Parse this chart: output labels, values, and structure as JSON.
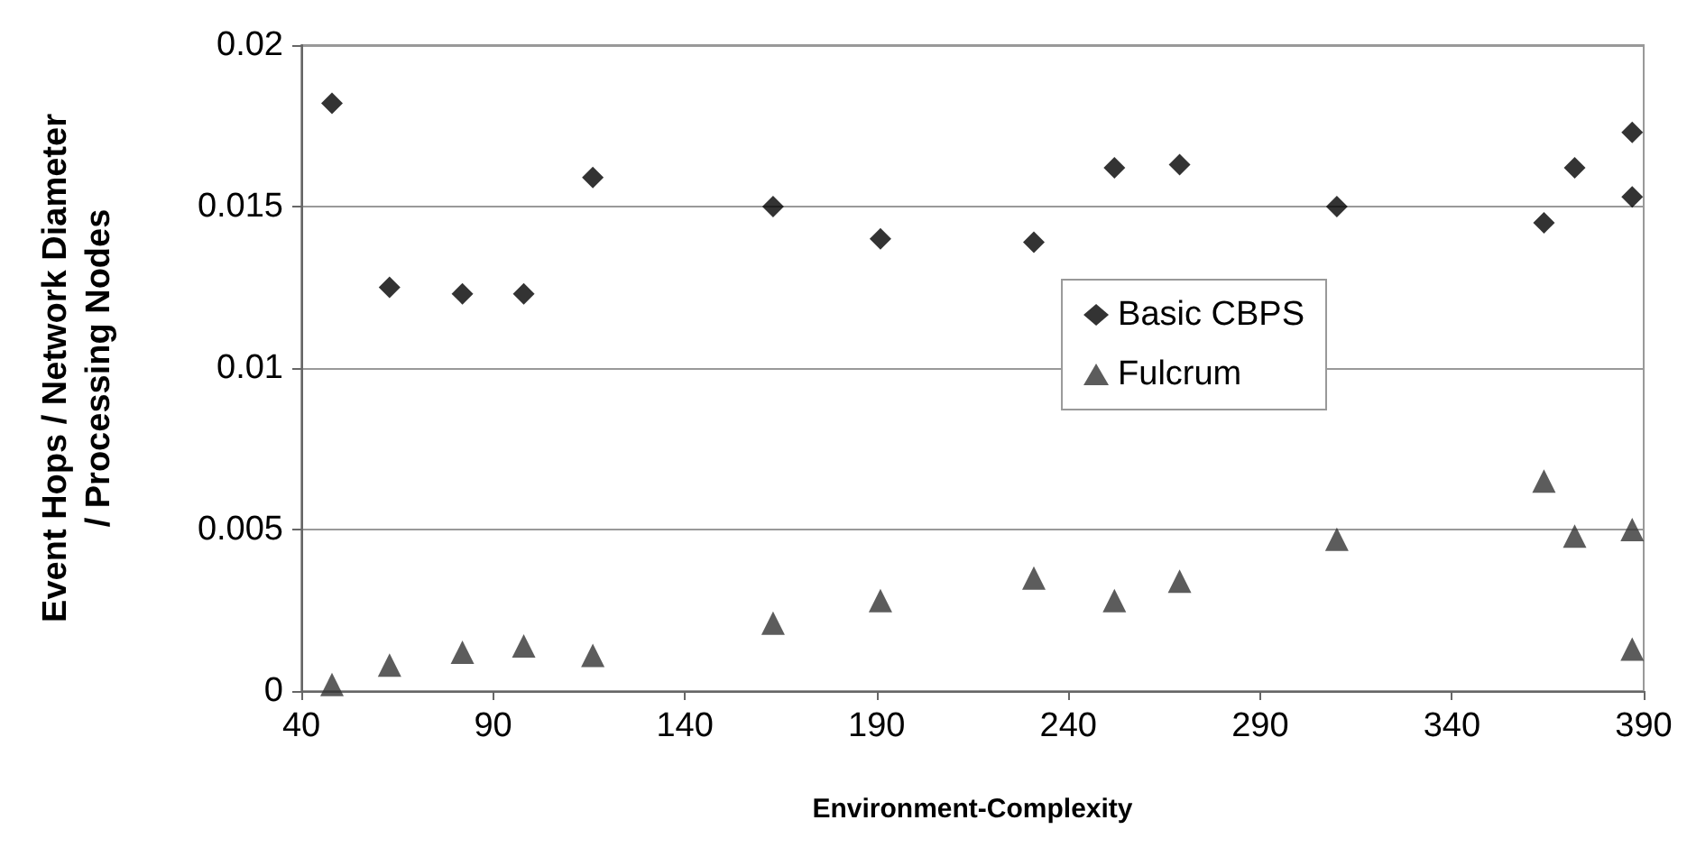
{
  "chart_data": {
    "type": "scatter",
    "xlabel": "Environment-Complexity",
    "ylabel": "Event Hops / Network Diameter\n/ Processing Nodes",
    "xlim": [
      40,
      390
    ],
    "xticks": [
      40,
      90,
      140,
      190,
      240,
      290,
      340,
      390
    ],
    "ylim": [
      0,
      0.02
    ],
    "yticks": [
      0,
      0.005,
      0.01,
      0.015,
      0.02
    ],
    "grid": "y",
    "legend": "right",
    "series": [
      {
        "name": "Basic CBPS",
        "color": "#000000",
        "marker": "diamond",
        "x": [
          48,
          63,
          82,
          98,
          116,
          163,
          191,
          231,
          252,
          269,
          310,
          364,
          372,
          387,
          387
        ],
        "values": [
          0.0182,
          0.0125,
          0.0123,
          0.0123,
          0.0159,
          0.015,
          0.014,
          0.0139,
          0.0162,
          0.0163,
          0.015,
          0.0145,
          0.0162,
          0.0173,
          0.0153
        ]
      },
      {
        "name": "Fulcrum",
        "color": "#333333",
        "marker": "triangle",
        "x": [
          48,
          63,
          82,
          98,
          116,
          163,
          191,
          231,
          252,
          269,
          310,
          364,
          372,
          387,
          387
        ],
        "values": [
          0.0002,
          0.0008,
          0.0012,
          0.0014,
          0.0011,
          0.0021,
          0.0028,
          0.0035,
          0.0028,
          0.0034,
          0.0047,
          0.0065,
          0.0048,
          0.005,
          0.0013
        ]
      }
    ]
  }
}
